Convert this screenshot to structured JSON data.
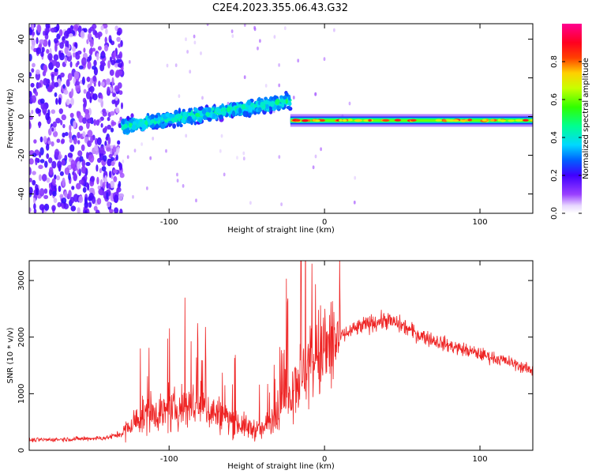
{
  "title": "C2E4.2023.355.06.43.G32",
  "colors": {
    "snr_line": "#ee2222",
    "axis": "#000000",
    "background": "#ffffff"
  },
  "chart_data": [
    {
      "type": "heatmap",
      "name": "spectrogram",
      "title": "C2E4.2023.355.06.43.G32",
      "xlabel": "Height of straight line (km)",
      "ylabel": "Frequency (Hz)",
      "xlim": [
        -190,
        134
      ],
      "ylim": [
        -50,
        48
      ],
      "xticks": [
        -100,
        0,
        100
      ],
      "yticks": [
        -40,
        -20,
        0,
        20,
        40
      ],
      "colorbar": {
        "label": "Normalized spectral amplitude",
        "range": [
          0.0,
          1.0
        ],
        "ticks": [
          0.0,
          0.2,
          0.4,
          0.6,
          0.8
        ],
        "colormap": "hsv-rainbow (violet → blue → cyan → green → yellow → red → magenta)"
      },
      "features": [
        {
          "region": "noise",
          "x_range": [
            -190,
            -130
          ],
          "freq_range": [
            -50,
            48
          ],
          "amplitude": 0.15
        },
        {
          "region": "rising tone",
          "x_range": [
            -130,
            -22
          ],
          "freq_start": -5,
          "freq_end": 8,
          "amplitude": 0.4
        },
        {
          "region": "steady tone",
          "x_range": [
            -22,
            134
          ],
          "freq": -2,
          "amplitude": 0.9
        }
      ]
    },
    {
      "type": "line",
      "name": "snr",
      "xlabel": "Height of straight line (km)",
      "ylabel": "SNR (10 * v/v)",
      "xlim": [
        -190,
        134
      ],
      "ylim": [
        0,
        3350
      ],
      "xticks": [
        -100,
        0,
        100
      ],
      "yticks": [
        0,
        1000,
        2000,
        3000
      ],
      "envelope": {
        "x": [
          -190,
          -160,
          -140,
          -130,
          -120,
          -110,
          -100,
          -90,
          -80,
          -70,
          -60,
          -50,
          -40,
          -30,
          -20,
          -10,
          0,
          10,
          20,
          30,
          40,
          50,
          60,
          80,
          100,
          120,
          134
        ],
        "y": [
          180,
          200,
          220,
          300,
          550,
          700,
          650,
          800,
          800,
          650,
          550,
          400,
          350,
          700,
          1200,
          1500,
          1750,
          2000,
          2150,
          2250,
          2300,
          2200,
          2050,
          1850,
          1700,
          1550,
          1400
        ]
      }
    }
  ]
}
